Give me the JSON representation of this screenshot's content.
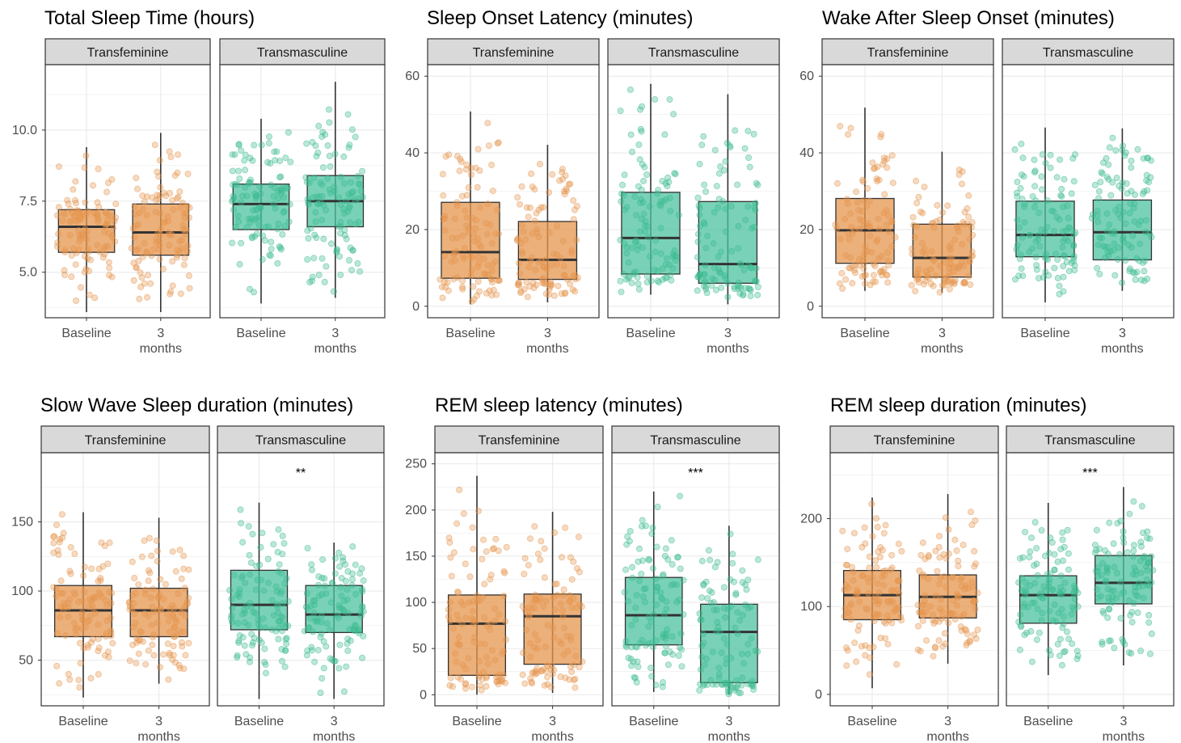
{
  "colors": {
    "transfeminine": "#E6964E",
    "transmasculine": "#4CC3A0",
    "transfeminine_point": "#E6964E",
    "transmasculine_point": "#3DBB8F",
    "strip_fill": "#D9D9D9",
    "grid": "#EBEBEB",
    "border": "#333333",
    "median": "#333333"
  },
  "chart_data": [
    {
      "type": "boxplot",
      "title": "Total Sleep Time (hours)",
      "xlabel": "",
      "ylabel": "",
      "ylim": [
        3.4,
        12.3
      ],
      "yticks": [
        5.0,
        7.5,
        10.0
      ],
      "ytick_labels": [
        "5.0",
        "7.5",
        "10.0"
      ],
      "categories": [
        "Baseline",
        "3 months"
      ],
      "facets": [
        {
          "name": "Transfeminine",
          "significance": "",
          "boxes": [
            {
              "category": "Baseline",
              "min": 3.6,
              "q1": 5.7,
              "median": 6.6,
              "q3": 7.2,
              "max": 9.4
            },
            {
              "category": "3 months",
              "min": 3.6,
              "q1": 5.6,
              "median": 6.4,
              "q3": 7.4,
              "max": 9.9
            }
          ]
        },
        {
          "name": "Transmasculine",
          "significance": "",
          "boxes": [
            {
              "category": "Baseline",
              "min": 3.9,
              "q1": 6.5,
              "median": 7.4,
              "q3": 8.1,
              "max": 10.4
            },
            {
              "category": "3 months",
              "min": 4.1,
              "q1": 6.6,
              "median": 7.5,
              "q3": 8.4,
              "max": 11.7
            }
          ]
        }
      ]
    },
    {
      "type": "boxplot",
      "title": "Sleep Onset Latency (minutes)",
      "xlabel": "",
      "ylabel": "",
      "ylim": [
        -3,
        63
      ],
      "yticks": [
        0,
        20,
        40,
        60
      ],
      "ytick_labels": [
        "0",
        "20",
        "40",
        "60"
      ],
      "categories": [
        "Baseline",
        "3 months"
      ],
      "facets": [
        {
          "name": "Transfeminine",
          "significance": "",
          "boxes": [
            {
              "category": "Baseline",
              "min": 0.5,
              "q1": 7.3,
              "median": 14.1,
              "q3": 27.1,
              "max": 50.8
            },
            {
              "category": "3 months",
              "min": 1.0,
              "q1": 7.0,
              "median": 12.1,
              "q3": 22.1,
              "max": 42.1
            }
          ]
        },
        {
          "name": "Transmasculine",
          "significance": "",
          "boxes": [
            {
              "category": "Baseline",
              "min": 3.0,
              "q1": 8.4,
              "median": 17.8,
              "q3": 29.7,
              "max": 58.0
            },
            {
              "category": "3 months",
              "min": 0.5,
              "q1": 6.0,
              "median": 11.0,
              "q3": 27.3,
              "max": 55.3
            }
          ]
        }
      ]
    },
    {
      "type": "boxplot",
      "title": "Wake After Sleep Onset (minutes)",
      "xlabel": "",
      "ylabel": "",
      "ylim": [
        -3,
        63
      ],
      "yticks": [
        0,
        20,
        40,
        60
      ],
      "ytick_labels": [
        "0",
        "20",
        "40",
        "60"
      ],
      "categories": [
        "Baseline",
        "3 months"
      ],
      "facets": [
        {
          "name": "Transfeminine",
          "significance": "",
          "boxes": [
            {
              "category": "Baseline",
              "min": 4.0,
              "q1": 11.2,
              "median": 19.8,
              "q3": 28.1,
              "max": 51.8
            },
            {
              "category": "3 months",
              "min": 3.5,
              "q1": 7.6,
              "median": 12.6,
              "q3": 21.4,
              "max": 40.3
            }
          ]
        },
        {
          "name": "Transmasculine",
          "significance": "",
          "boxes": [
            {
              "category": "Baseline",
              "min": 1.0,
              "q1": 12.9,
              "median": 18.6,
              "q3": 27.4,
              "max": 46.6
            },
            {
              "category": "3 months",
              "min": 4.0,
              "q1": 12.1,
              "median": 19.3,
              "q3": 27.7,
              "max": 46.4
            }
          ]
        }
      ]
    },
    {
      "type": "boxplot",
      "title": "Slow Wave Sleep duration (minutes)",
      "xlabel": "",
      "ylabel": "",
      "ylim": [
        17,
        200
      ],
      "yticks": [
        50,
        100,
        150
      ],
      "ytick_labels": [
        "50",
        "100",
        "150"
      ],
      "categories": [
        "Baseline",
        "3 months"
      ],
      "facets": [
        {
          "name": "Transfeminine",
          "significance": "",
          "boxes": [
            {
              "category": "Baseline",
              "min": 23,
              "q1": 67,
              "median": 86,
              "q3": 104,
              "max": 157
            },
            {
              "category": "3 months",
              "min": 33,
              "q1": 67,
              "median": 86,
              "q3": 102,
              "max": 153
            }
          ]
        },
        {
          "name": "Transmasculine",
          "significance": "**",
          "boxes": [
            {
              "category": "Baseline",
              "min": 22,
              "q1": 72,
              "median": 90,
              "q3": 115,
              "max": 164
            },
            {
              "category": "3 months",
              "min": 22,
              "q1": 70,
              "median": 83,
              "q3": 104,
              "max": 135
            }
          ]
        }
      ]
    },
    {
      "type": "boxplot",
      "title": "REM sleep latency (minutes)",
      "xlabel": "",
      "ylabel": "",
      "ylim": [
        -12,
        262
      ],
      "yticks": [
        0,
        50,
        100,
        150,
        200,
        250
      ],
      "ytick_labels": [
        "0",
        "50",
        "100",
        "150",
        "200",
        "250"
      ],
      "categories": [
        "Baseline",
        "3 months"
      ],
      "facets": [
        {
          "name": "Transfeminine",
          "significance": "",
          "boxes": [
            {
              "category": "Baseline",
              "min": 0,
              "q1": 21,
              "median": 77,
              "q3": 108,
              "max": 237
            },
            {
              "category": "3 months",
              "min": 2,
              "q1": 33,
              "median": 85,
              "q3": 109,
              "max": 198
            }
          ]
        },
        {
          "name": "Transmasculine",
          "significance": "***",
          "boxes": [
            {
              "category": "Baseline",
              "min": 3,
              "q1": 54,
              "median": 86,
              "q3": 127,
              "max": 220
            },
            {
              "category": "3 months",
              "min": 0,
              "q1": 13,
              "median": 68,
              "q3": 98,
              "max": 183
            }
          ]
        }
      ]
    },
    {
      "type": "boxplot",
      "title": "REM sleep duration (minutes)",
      "xlabel": "",
      "ylabel": "",
      "ylim": [
        -13,
        275
      ],
      "yticks": [
        0,
        100,
        200
      ],
      "ytick_labels": [
        "0",
        "100",
        "200"
      ],
      "categories": [
        "Baseline",
        "3 months"
      ],
      "facets": [
        {
          "name": "Transfeminine",
          "significance": "",
          "boxes": [
            {
              "category": "Baseline",
              "min": 7,
              "q1": 85,
              "median": 113,
              "q3": 141,
              "max": 224
            },
            {
              "category": "3 months",
              "min": 35,
              "q1": 87,
              "median": 111,
              "q3": 136,
              "max": 228
            }
          ]
        },
        {
          "name": "Transmasculine",
          "significance": "***",
          "boxes": [
            {
              "category": "Baseline",
              "min": 22,
              "q1": 81,
              "median": 113,
              "q3": 135,
              "max": 218
            },
            {
              "category": "3 months",
              "min": 33,
              "q1": 103,
              "median": 127,
              "q3": 158,
              "max": 236
            }
          ]
        }
      ]
    }
  ]
}
